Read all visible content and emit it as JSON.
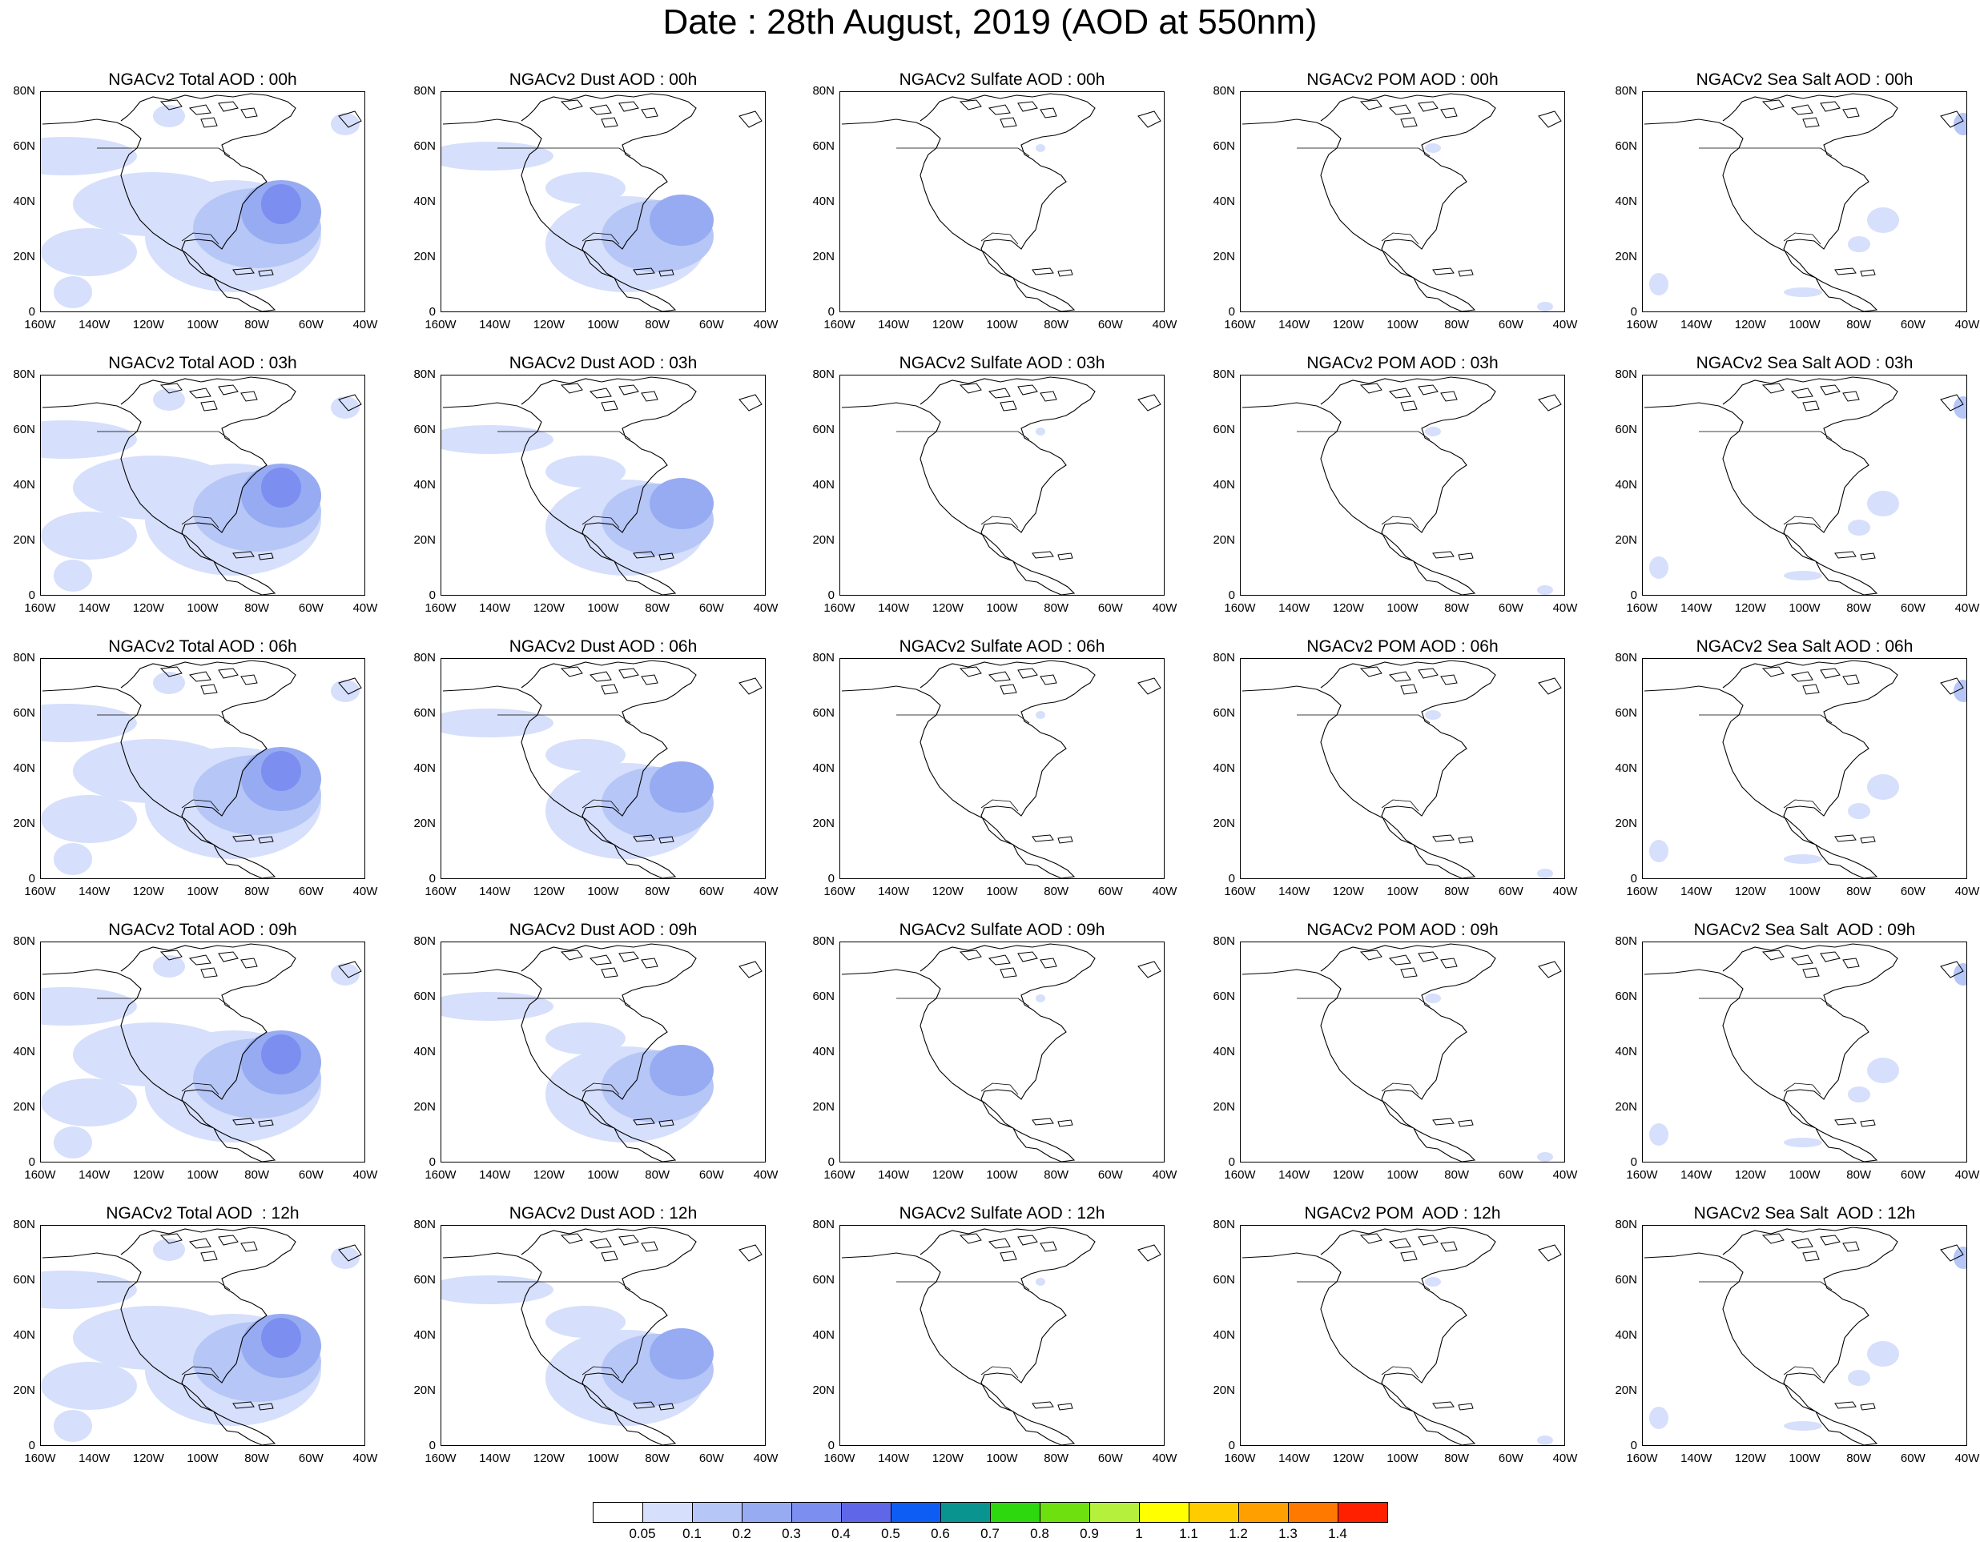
{
  "title": "Date : 28th August, 2019 (AOD at 550nm)",
  "axes": {
    "lat_ticks": [
      "80N",
      "60N",
      "40N",
      "20N",
      "0"
    ],
    "lon_ticks": [
      "160W",
      "140W",
      "120W",
      "100W",
      "80W",
      "60W",
      "40W"
    ]
  },
  "panels": [
    [
      "NGACv2 Total AOD : 00h",
      "NGACv2 Dust AOD : 00h",
      "NGACv2 Sulfate AOD : 00h",
      "NGACv2 POM AOD : 00h",
      "NGACv2 Sea Salt AOD : 00h"
    ],
    [
      "NGACv2 Total AOD : 03h",
      "NGACv2 Dust AOD : 03h",
      "NGACv2 Sulfate AOD : 03h",
      "NGACv2 POM AOD : 03h",
      "NGACv2 Sea Salt AOD : 03h"
    ],
    [
      "NGACv2 Total AOD : 06h",
      "NGACv2 Dust AOD : 06h",
      "NGACv2 Sulfate AOD : 06h",
      "NGACv2 POM AOD : 06h",
      "NGACv2 Sea Salt AOD : 06h"
    ],
    [
      "NGACv2 Total AOD : 09h",
      "NGACv2 Dust AOD : 09h",
      "NGACv2 Sulfate AOD : 09h",
      "NGACv2 POM AOD : 09h",
      "NGACv2 Sea Salt  AOD : 09h"
    ],
    [
      "NGACv2 Total AOD  : 12h",
      "NGACv2 Dust AOD : 12h",
      "NGACv2 Sulfate AOD : 12h",
      "NGACv2 POM  AOD : 12h",
      "NGACv2 Sea Salt  AOD : 12h"
    ]
  ],
  "colorbar": {
    "labels": [
      "0.05",
      "0.1",
      "0.2",
      "0.3",
      "0.4",
      "0.5",
      "0.6",
      "0.7",
      "0.8",
      "0.9",
      "1",
      "1.1",
      "1.2",
      "1.3",
      "1.4"
    ],
    "colors": [
      "#ffffff",
      "#d6dffb",
      "#b6c6f6",
      "#97abf2",
      "#7c8ef0",
      "#5f67e8",
      "#0d5df4",
      "#0a9490",
      "#2dd80f",
      "#6ee010",
      "#b5f03c",
      "#ffff00",
      "#ffcc00",
      "#ffa000",
      "#ff7800",
      "#ff2000"
    ]
  }
}
